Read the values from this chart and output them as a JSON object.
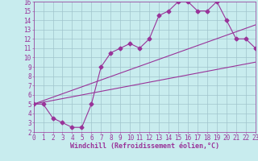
{
  "xlabel": "Windchill (Refroidissement éolien,°C)",
  "xlim": [
    0,
    23
  ],
  "ylim": [
    2,
    16
  ],
  "xticks": [
    0,
    1,
    2,
    3,
    4,
    5,
    6,
    7,
    8,
    9,
    10,
    11,
    12,
    13,
    14,
    15,
    16,
    17,
    18,
    19,
    20,
    21,
    22,
    23
  ],
  "yticks": [
    2,
    3,
    4,
    5,
    6,
    7,
    8,
    9,
    10,
    11,
    12,
    13,
    14,
    15,
    16
  ],
  "bg_color": "#c8ecee",
  "grid_color": "#a0c4cc",
  "line_color": "#993399",
  "line1_x": [
    0,
    1,
    2,
    3,
    4,
    5,
    6,
    7,
    8,
    9,
    10,
    11,
    12,
    13,
    14,
    15,
    16,
    17,
    18,
    19,
    20,
    21,
    22,
    23
  ],
  "line1_y": [
    5.0,
    5.0,
    3.5,
    3.0,
    2.5,
    2.5,
    5.0,
    9.0,
    10.5,
    11.0,
    11.5,
    11.0,
    12.0,
    14.5,
    15.0,
    16.0,
    16.0,
    15.0,
    15.0,
    16.0,
    14.0,
    12.0,
    12.0,
    11.0
  ],
  "line2_x": [
    0,
    23
  ],
  "line2_y": [
    5.0,
    9.5
  ],
  "line3_x": [
    0,
    23
  ],
  "line3_y": [
    5.0,
    13.5
  ],
  "marker": "D",
  "marker_size": 2.5,
  "linewidth": 0.8,
  "font_color": "#993399",
  "xlabel_fontsize": 6.0,
  "tick_fontsize": 5.5
}
